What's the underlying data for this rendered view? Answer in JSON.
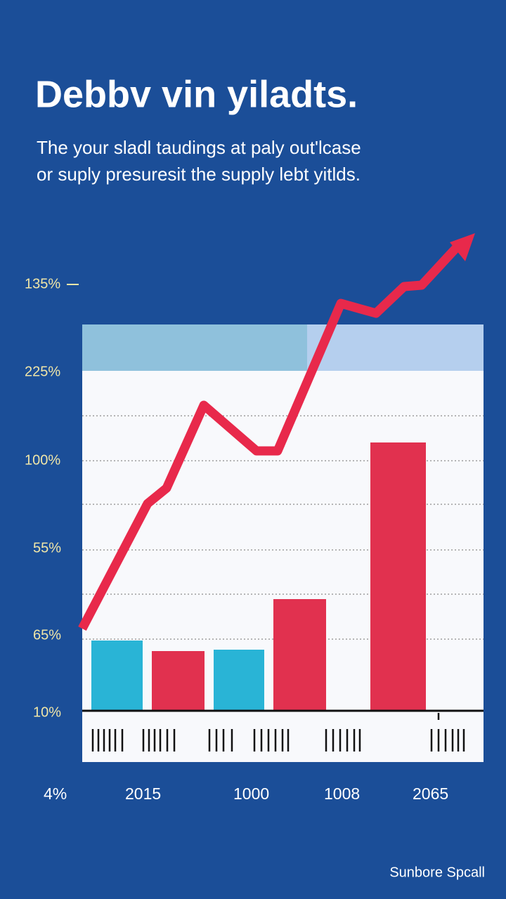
{
  "header": {
    "title": "Debbv vin yiladts.",
    "subtitle_lines": [
      "The your sladl taudings at paly out'lcase",
      "or suply presuresit the supply lebt yitlds."
    ]
  },
  "y_axis_labels": [
    "135%",
    "225%",
    "100%",
    "55%",
    "65%",
    "10%"
  ],
  "x_axis_labels": [
    "4%",
    "2015",
    "1000",
    "1008",
    "2065"
  ],
  "footer": "Sunbore Spcall"
}
